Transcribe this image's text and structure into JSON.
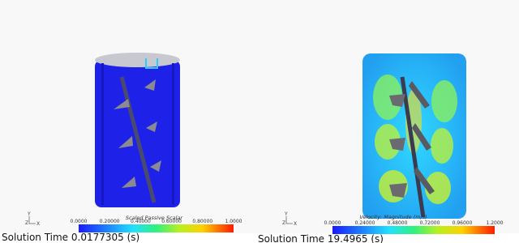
{
  "panels": [
    {
      "colorbar": {
        "title": "Scaled Passive Scalar",
        "ticks": [
          "0.0000",
          "0.20000",
          "0.40000",
          "0.60000",
          "0.80000",
          "1.0000"
        ]
      },
      "axes": [
        "Y",
        "Z",
        "X"
      ],
      "solution_time": "Solution Time 0.0177305 (s)"
    },
    {
      "colorbar": {
        "title": "Velocity: Magnitude (m/s)",
        "ticks": [
          "0.0000",
          "0.24000",
          "0.48000",
          "0.72000",
          "0.96000",
          "1.2000"
        ]
      },
      "axes": [
        "Y",
        "Z",
        "X"
      ],
      "solution_time": "Solution Time 19.4965 (s)"
    }
  ]
}
